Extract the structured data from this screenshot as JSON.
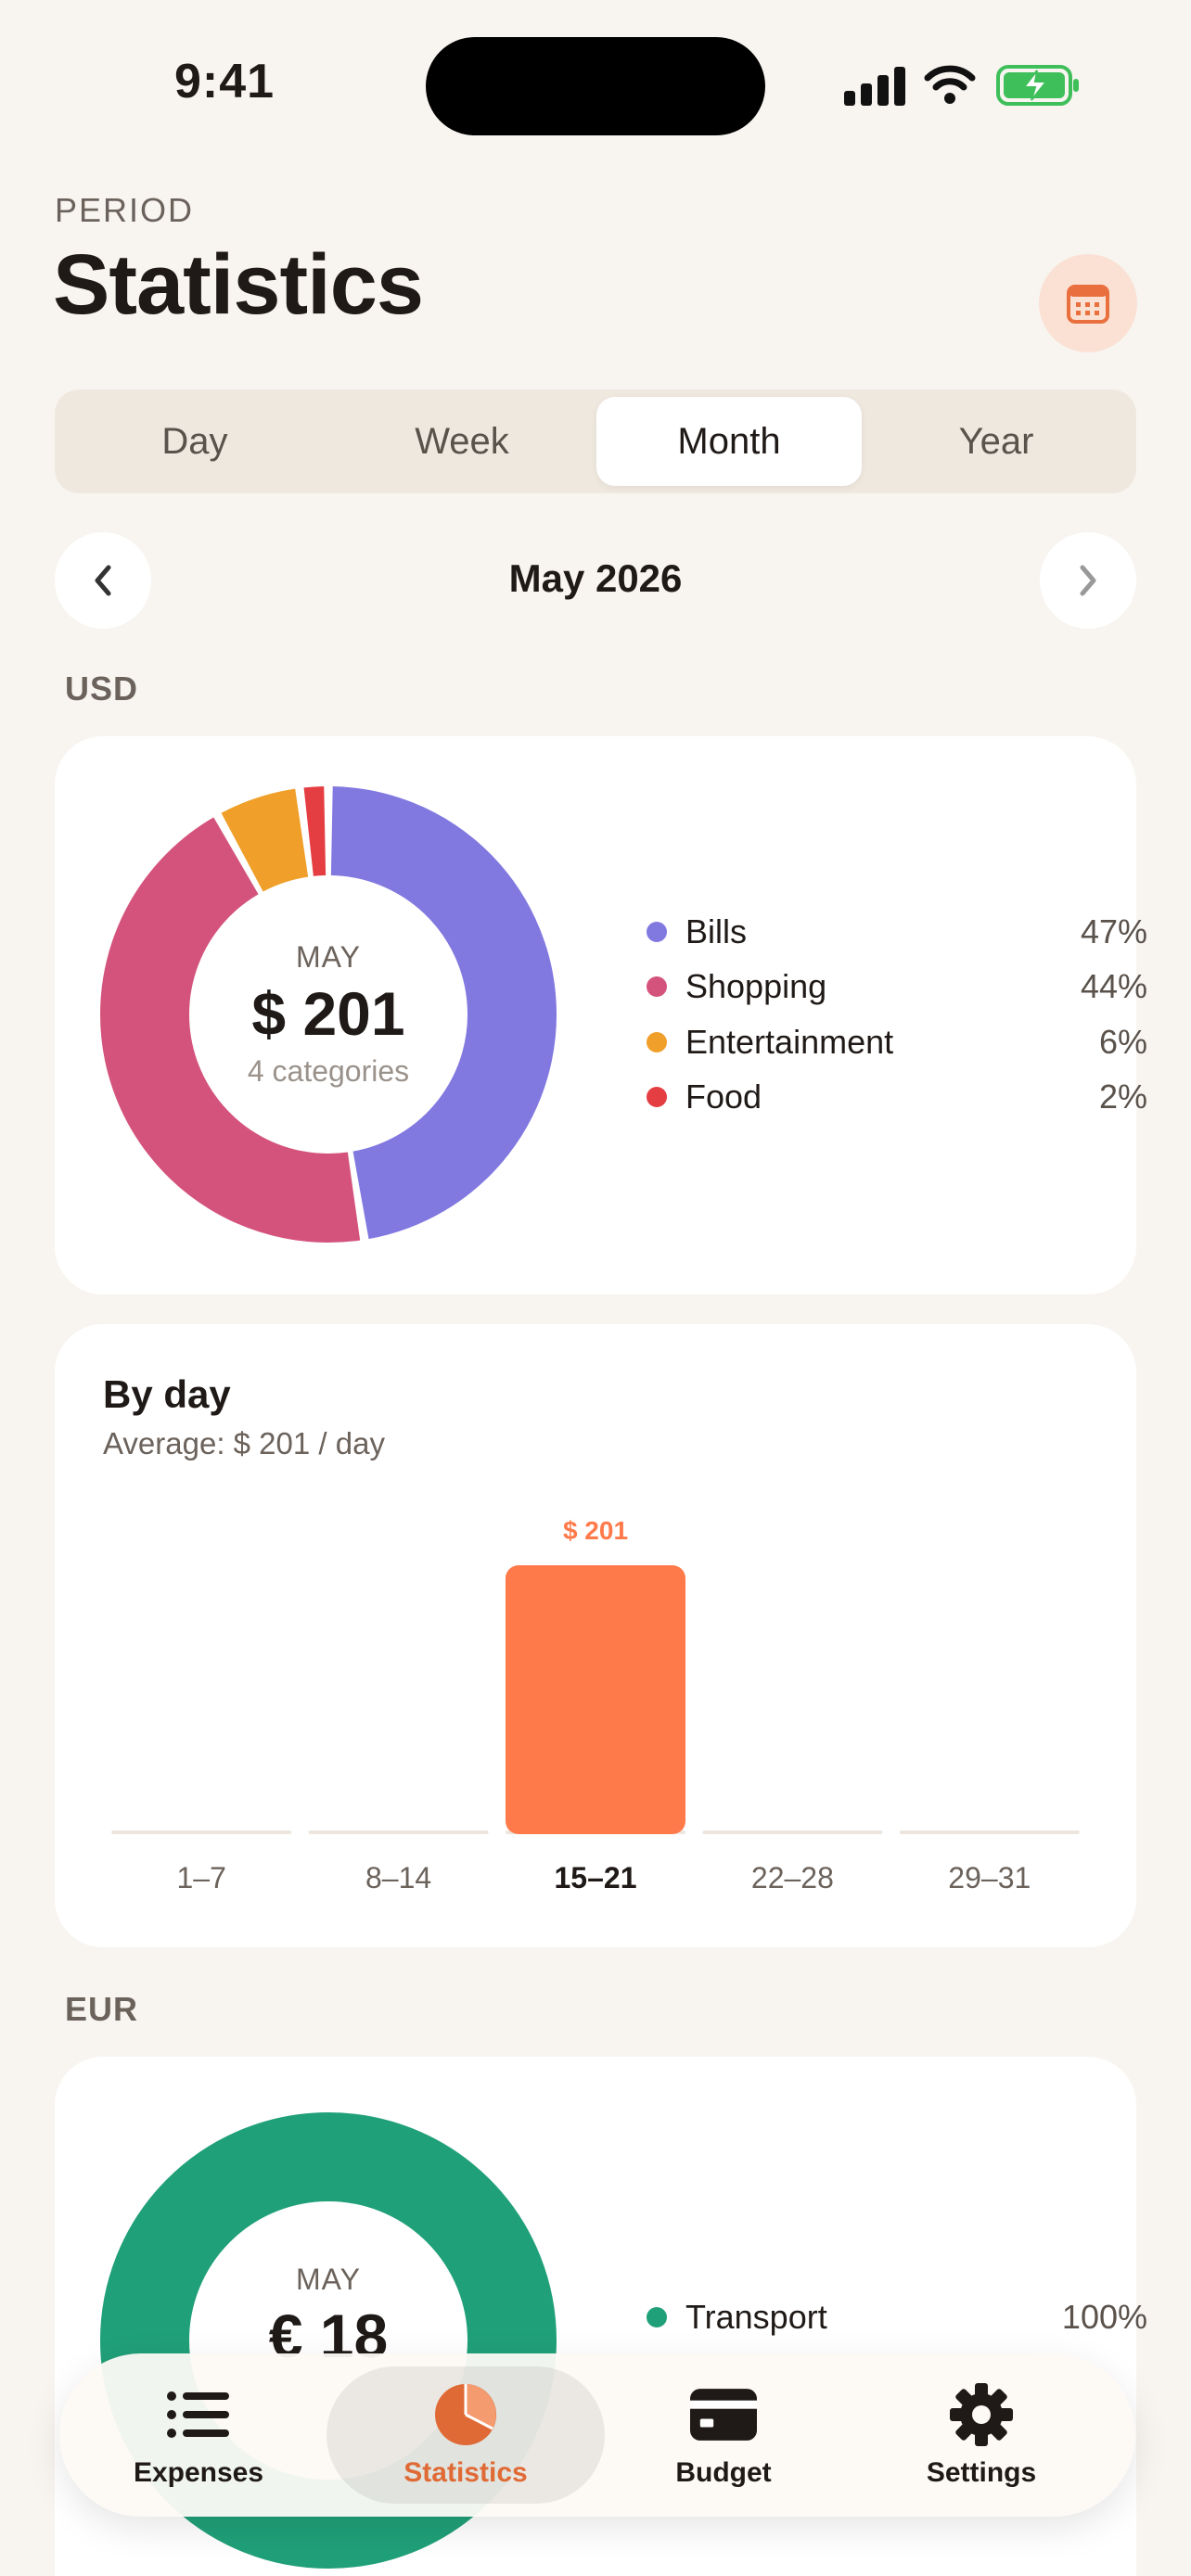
{
  "status": {
    "time": "9:41"
  },
  "header": {
    "kicker": "PERIOD",
    "title": "Statistics"
  },
  "period_tabs": [
    {
      "label": "Day",
      "active": false
    },
    {
      "label": "Week",
      "active": false
    },
    {
      "label": "Month",
      "active": true
    },
    {
      "label": "Year",
      "active": false
    }
  ],
  "nav": {
    "month": "May 2026"
  },
  "usd": {
    "currency": "USD",
    "donut": {
      "center_kicker": "MAY",
      "total": "$ 201",
      "subtitle": "4 categories"
    },
    "legend": [
      {
        "name": "Bills",
        "pct": "47%",
        "color": "#8178e0"
      },
      {
        "name": "Shopping",
        "pct": "44%",
        "color": "#d4537c"
      },
      {
        "name": "Entertainment",
        "pct": "6%",
        "color": "#f0a02a"
      },
      {
        "name": "Food",
        "pct": "2%",
        "color": "#e53e42"
      }
    ],
    "by_day": {
      "title": "By day",
      "subtitle": "Average: $ 201 / day",
      "bar_label": "$ 201"
    }
  },
  "chart_data": {
    "type": "bar",
    "categories": [
      "1–7",
      "8–14",
      "15–21",
      "22–28",
      "29–31"
    ],
    "values": [
      0,
      0,
      201,
      0,
      0
    ],
    "highlight_index": 2,
    "title": "By day",
    "bar_color": "#ff7a4a"
  },
  "eur": {
    "currency": "EUR",
    "donut": {
      "center_kicker": "MAY",
      "total": "€ 18"
    },
    "legend": [
      {
        "name": "Transport",
        "pct": "100%",
        "color": "#20a078"
      }
    ]
  },
  "tabbar": [
    {
      "label": "Expenses",
      "icon": "list-icon",
      "active": false
    },
    {
      "label": "Statistics",
      "icon": "pie-chart-icon",
      "active": true
    },
    {
      "label": "Budget",
      "icon": "wallet-icon",
      "active": false
    },
    {
      "label": "Settings",
      "icon": "gear-icon",
      "active": false
    }
  ],
  "colors": {
    "accent": "#e06a35",
    "background": "#f8f5f1"
  }
}
